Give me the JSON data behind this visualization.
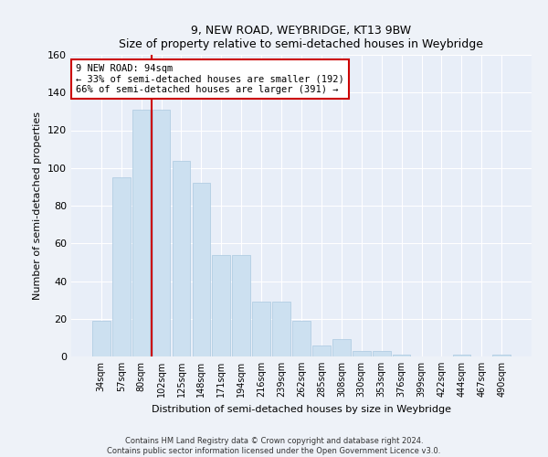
{
  "title_line1": "9, NEW ROAD, WEYBRIDGE, KT13 9BW",
  "title_line2": "Size of property relative to semi-detached houses in Weybridge",
  "xlabel": "Distribution of semi-detached houses by size in Weybridge",
  "ylabel": "Number of semi-detached properties",
  "categories": [
    "34sqm",
    "57sqm",
    "80sqm",
    "102sqm",
    "125sqm",
    "148sqm",
    "171sqm",
    "194sqm",
    "216sqm",
    "239sqm",
    "262sqm",
    "285sqm",
    "308sqm",
    "330sqm",
    "353sqm",
    "376sqm",
    "399sqm",
    "422sqm",
    "444sqm",
    "467sqm",
    "490sqm"
  ],
  "values": [
    19,
    95,
    131,
    131,
    104,
    92,
    54,
    54,
    29,
    29,
    19,
    6,
    9,
    3,
    3,
    1,
    0,
    0,
    1,
    0,
    1
  ],
  "bar_color": "#cce0f0",
  "bar_edge_color": "#aac8e0",
  "vline_color": "#cc0000",
  "annotation_line1": "9 NEW ROAD: 94sqm",
  "annotation_line2": "← 33% of semi-detached houses are smaller (192)",
  "annotation_line3": "66% of semi-detached houses are larger (391) →",
  "annotation_edge_color": "#cc0000",
  "ylim": [
    0,
    160
  ],
  "yticks": [
    0,
    20,
    40,
    60,
    80,
    100,
    120,
    140,
    160
  ],
  "background_color": "#eef2f8",
  "plot_bg_color": "#e8eef8",
  "grid_color": "#ffffff",
  "footer_text": "Contains HM Land Registry data © Crown copyright and database right 2024.\nContains public sector information licensed under the Open Government Licence v3.0."
}
